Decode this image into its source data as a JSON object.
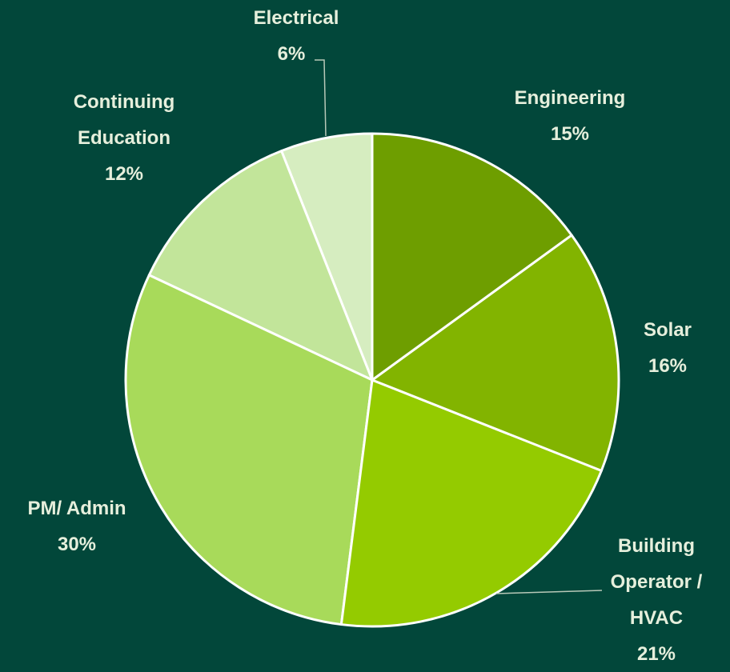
{
  "chart_data": {
    "type": "pie",
    "categories": [
      "Engineering",
      "Solar",
      "Building Operator / HVAC",
      "PM/ Admin",
      "Continuing Education",
      "Electrical"
    ],
    "values": [
      15,
      16,
      21,
      30,
      12,
      6
    ],
    "value_labels": [
      "15%",
      "16%",
      "21%",
      "30%",
      "12%",
      "6%"
    ],
    "colors": [
      "#6e9e00",
      "#82b400",
      "#94cb00",
      "#a8da5a",
      "#c2e59a",
      "#d6edc0"
    ]
  }
}
